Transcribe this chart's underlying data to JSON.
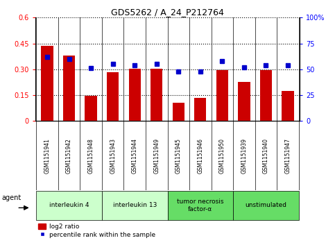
{
  "title": "GDS5262 / A_24_P212764",
  "samples": [
    "GSM1151941",
    "GSM1151942",
    "GSM1151948",
    "GSM1151943",
    "GSM1151944",
    "GSM1151949",
    "GSM1151945",
    "GSM1151946",
    "GSM1151950",
    "GSM1151939",
    "GSM1151940",
    "GSM1151947"
  ],
  "log2_ratio": [
    0.435,
    0.38,
    0.148,
    0.285,
    0.305,
    0.305,
    0.105,
    0.135,
    0.295,
    0.225,
    0.295,
    0.175
  ],
  "percentile": [
    62,
    60,
    51,
    55,
    54,
    55,
    48,
    48,
    58,
    52,
    54,
    54
  ],
  "ylim_left": [
    0,
    0.6
  ],
  "ylim_right": [
    0,
    100
  ],
  "yticks_left": [
    0,
    0.15,
    0.3,
    0.45,
    0.6
  ],
  "ytick_labels_left": [
    "0",
    "0.15",
    "0.30",
    "0.45",
    "0.6"
  ],
  "yticks_right": [
    0,
    25,
    50,
    75,
    100
  ],
  "ytick_labels_right": [
    "0",
    "25",
    "50",
    "75",
    "100%"
  ],
  "bar_color": "#cc0000",
  "dot_color": "#0000cc",
  "groups": [
    {
      "label": "interleukin 4",
      "indices": [
        0,
        1,
        2
      ],
      "color": "#ccffcc"
    },
    {
      "label": "interleukin 13",
      "indices": [
        3,
        4,
        5
      ],
      "color": "#ccffcc"
    },
    {
      "label": "tumor necrosis\nfactor-α",
      "indices": [
        6,
        7,
        8
      ],
      "color": "#66dd66"
    },
    {
      "label": "unstimulated",
      "indices": [
        9,
        10,
        11
      ],
      "color": "#66dd66"
    }
  ],
  "agent_label": "agent",
  "legend_bar_label": "log2 ratio",
  "legend_dot_label": "percentile rank within the sample",
  "background_color": "#ffffff",
  "plot_bg_color": "#ffffff",
  "tick_area_color": "#cccccc",
  "bar_width": 0.55,
  "xlim": [
    -0.55,
    11.55
  ]
}
